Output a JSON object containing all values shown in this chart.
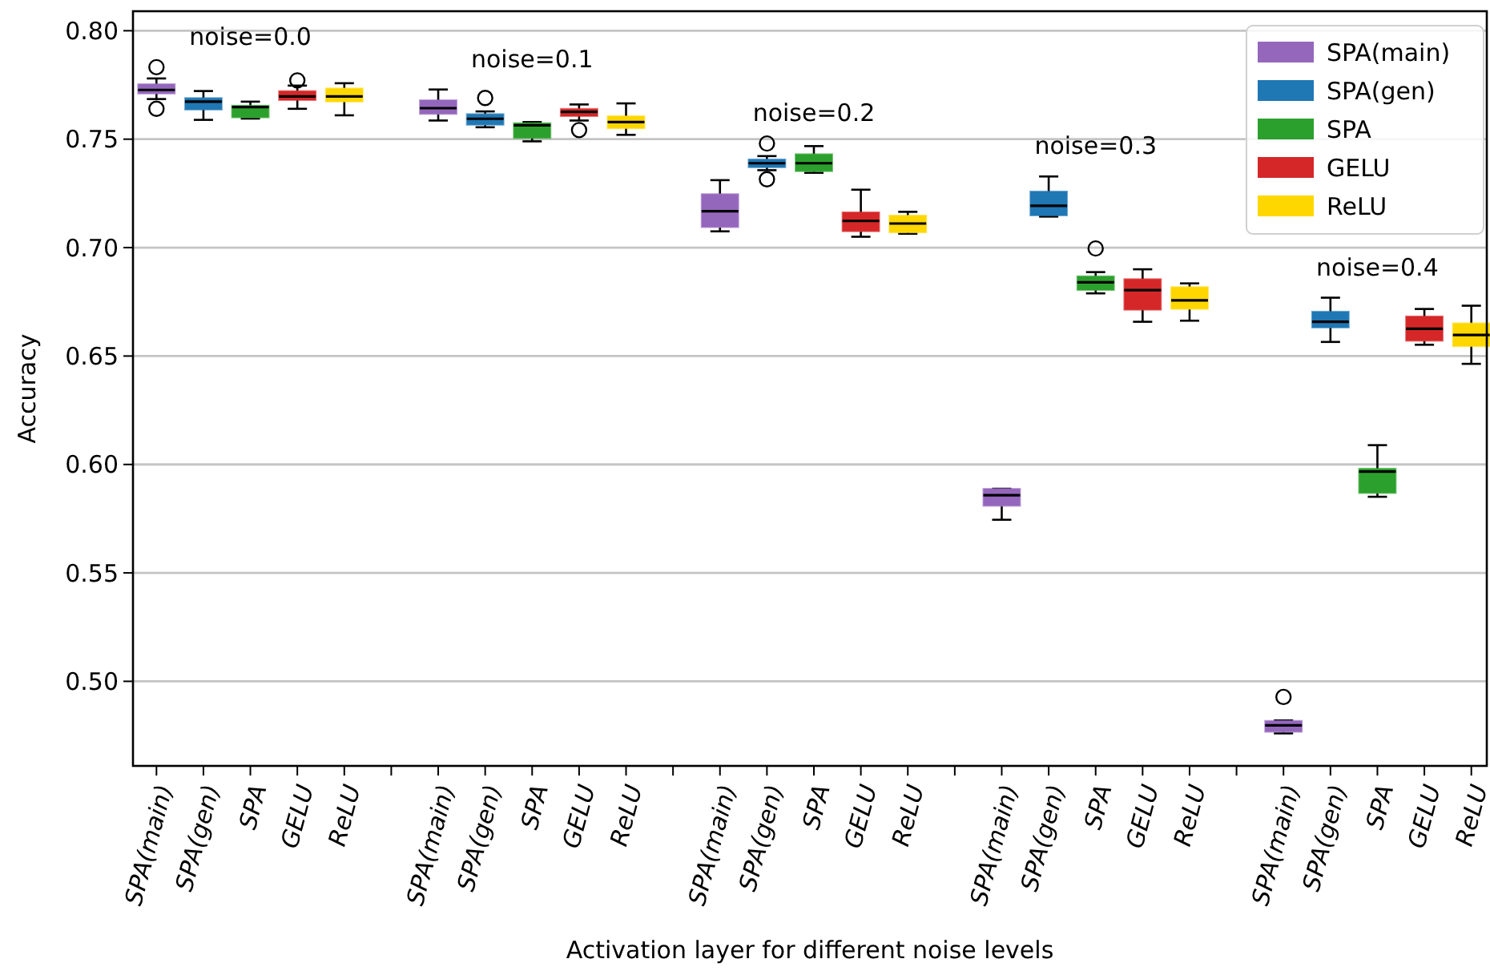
{
  "chart_data": {
    "type": "box",
    "xlabel": "Activation layer for different noise levels",
    "ylabel": "Accuracy",
    "categories": [
      "SPA(main)",
      "SPA(gen)",
      "SPA",
      "GELU",
      "ReLU",
      null,
      "SPA(main)",
      "SPA(gen)",
      "SPA",
      "GELU",
      "ReLU",
      null,
      "SPA(main)",
      "SPA(gen)",
      "SPA",
      "GELU",
      "ReLU",
      null,
      "SPA(main)",
      "SPA(gen)",
      "SPA",
      "GELU",
      "ReLU",
      null,
      "SPA(main)",
      "SPA(gen)",
      "SPA",
      "GELU",
      "ReLU"
    ],
    "annotations": [
      "noise=0.0",
      "noise=0.1",
      "noise=0.2",
      "noise=0.3",
      "noise=0.4"
    ],
    "ylim": [
      0.461,
      0.809
    ],
    "yticks": [
      {
        "value": 0.5,
        "label": "0.50"
      },
      {
        "value": 0.55,
        "label": "0.55"
      },
      {
        "value": 0.6,
        "label": "0.60"
      },
      {
        "value": 0.65,
        "label": "0.65"
      },
      {
        "value": 0.7,
        "label": "0.70"
      },
      {
        "value": 0.75,
        "label": "0.75"
      },
      {
        "value": 0.8,
        "label": "0.80"
      }
    ],
    "grid": "y",
    "legend": "top right",
    "series": [
      {
        "name": "SPA(main)",
        "color": "#9467bd",
        "boxes": [
          {
            "low": 0.7685,
            "q1": 0.771,
            "median": 0.7727,
            "q3": 0.7754,
            "high": 0.778,
            "outliers": [
              0.7832,
              0.764
            ]
          },
          null,
          null,
          null,
          null,
          null,
          {
            "low": 0.7586,
            "q1": 0.7616,
            "median": 0.7643,
            "q3": 0.768,
            "high": 0.7729
          },
          null,
          null,
          null,
          null,
          null,
          {
            "low": 0.7075,
            "q1": 0.7094,
            "median": 0.7168,
            "q3": 0.7247,
            "high": 0.7311
          },
          null,
          null,
          null,
          null,
          null,
          {
            "low": 0.5745,
            "q1": 0.5809,
            "median": 0.5858,
            "q3": 0.5888,
            "high": 0.5888
          },
          null,
          null,
          null,
          null,
          null,
          {
            "low": 0.476,
            "q1": 0.4767,
            "median": 0.4797,
            "q3": 0.4818,
            "high": 0.482,
            "outliers": [
              0.4928
            ]
          },
          null,
          null,
          null,
          null
        ]
      },
      {
        "name": "SPA(gen)",
        "color": "#1f77b4",
        "boxes": [
          null,
          {
            "low": 0.7589,
            "q1": 0.7636,
            "median": 0.7673,
            "q3": 0.769,
            "high": 0.7722
          },
          null,
          null,
          null,
          null,
          null,
          {
            "low": 0.7555,
            "q1": 0.7566,
            "median": 0.7594,
            "q3": 0.7616,
            "high": 0.7628,
            "outliers": [
              0.769
            ]
          },
          null,
          null,
          null,
          null,
          null,
          {
            "low": 0.7357,
            "q1": 0.737,
            "median": 0.7389,
            "q3": 0.7407,
            "high": 0.7422,
            "outliers": [
              0.748,
              0.7315
            ]
          },
          null,
          null,
          null,
          null,
          null,
          {
            "low": 0.7143,
            "q1": 0.7148,
            "median": 0.7193,
            "q3": 0.7259,
            "high": 0.7328
          },
          null,
          null,
          null,
          null,
          null,
          {
            "low": 0.6565,
            "q1": 0.6631,
            "median": 0.6658,
            "q3": 0.6705,
            "high": 0.6769
          },
          null,
          null,
          null
        ]
      },
      {
        "name": "SPA",
        "color": "#2ca02c",
        "boxes": [
          null,
          null,
          {
            "low": 0.7595,
            "q1": 0.76,
            "median": 0.7648,
            "q3": 0.7655,
            "high": 0.7673
          },
          null,
          null,
          null,
          null,
          null,
          {
            "low": 0.749,
            "q1": 0.7505,
            "median": 0.7564,
            "q3": 0.7574,
            "high": 0.7579
          },
          null,
          null,
          null,
          null,
          null,
          {
            "low": 0.7345,
            "q1": 0.7352,
            "median": 0.7389,
            "q3": 0.7431,
            "high": 0.7468
          },
          null,
          null,
          null,
          null,
          null,
          {
            "low": 0.6789,
            "q1": 0.6804,
            "median": 0.684,
            "q3": 0.6868,
            "high": 0.6887,
            "outliers": [
              0.6996
            ]
          },
          null,
          null,
          null,
          null,
          null,
          {
            "low": 0.5851,
            "q1": 0.5868,
            "median": 0.5967,
            "q3": 0.5981,
            "high": 0.6089
          },
          null,
          null
        ]
      },
      {
        "name": "GELU",
        "color": "#d62728",
        "boxes": [
          null,
          null,
          null,
          {
            "low": 0.764,
            "q1": 0.768,
            "median": 0.7697,
            "q3": 0.7722,
            "high": 0.7747,
            "outliers": [
              0.7771
            ]
          },
          null,
          null,
          null,
          null,
          null,
          {
            "low": 0.7586,
            "q1": 0.7606,
            "median": 0.7626,
            "q3": 0.764,
            "high": 0.766,
            "outliers": [
              0.7542
            ]
          },
          null,
          null,
          null,
          null,
          null,
          {
            "low": 0.705,
            "q1": 0.7075,
            "median": 0.7123,
            "q3": 0.7163,
            "high": 0.7267
          },
          null,
          null,
          null,
          null,
          null,
          {
            "low": 0.6658,
            "q1": 0.6713,
            "median": 0.6804,
            "q3": 0.6855,
            "high": 0.69
          },
          null,
          null,
          null,
          null,
          null,
          {
            "low": 0.6552,
            "q1": 0.657,
            "median": 0.6626,
            "q3": 0.6683,
            "high": 0.6717
          },
          null
        ]
      },
      {
        "name": "ReLU",
        "color": "#ffd700",
        "boxes": [
          null,
          null,
          null,
          null,
          {
            "low": 0.761,
            "q1": 0.7673,
            "median": 0.7697,
            "q3": 0.7734,
            "high": 0.7758
          },
          null,
          null,
          null,
          null,
          null,
          {
            "low": 0.752,
            "q1": 0.755,
            "median": 0.7579,
            "q3": 0.7606,
            "high": 0.7665
          },
          null,
          null,
          null,
          null,
          null,
          {
            "low": 0.7064,
            "q1": 0.707,
            "median": 0.7111,
            "q3": 0.7148,
            "high": 0.7165
          },
          null,
          null,
          null,
          null,
          null,
          {
            "low": 0.6663,
            "q1": 0.6717,
            "median": 0.6757,
            "q3": 0.6818,
            "high": 0.6835
          },
          null,
          null,
          null,
          null,
          null,
          {
            "low": 0.6464,
            "q1": 0.6545,
            "median": 0.6597,
            "q3": 0.6651,
            "high": 0.6732
          }
        ]
      }
    ]
  }
}
